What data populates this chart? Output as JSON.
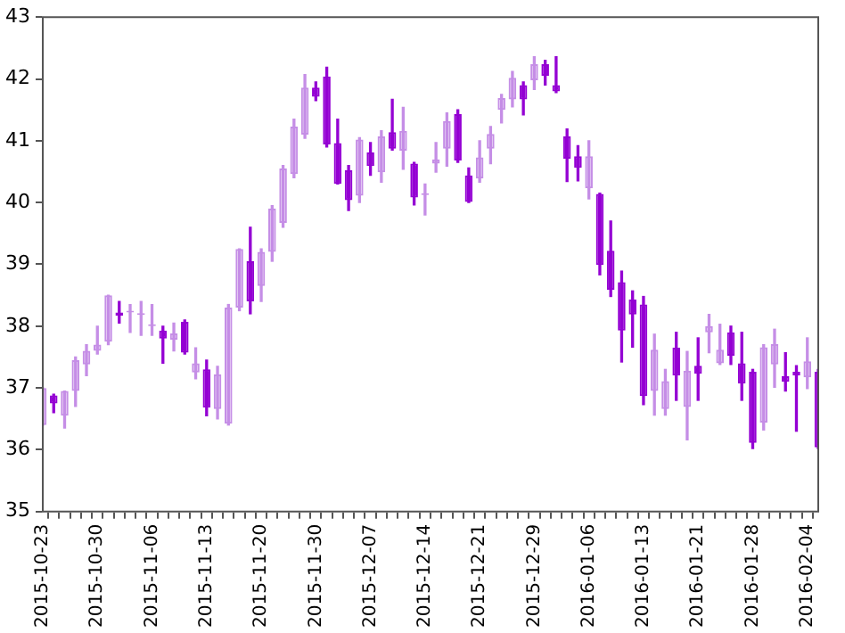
{
  "chart_data": {
    "type": "candlestick",
    "categories": [
      "2015-10-23",
      null,
      null,
      null,
      null,
      "2015-10-30",
      null,
      null,
      null,
      null,
      "2015-11-06",
      null,
      null,
      null,
      null,
      "2015-11-13",
      null,
      null,
      null,
      null,
      "2015-11-20",
      null,
      null,
      null,
      null,
      "2015-11-30",
      null,
      null,
      null,
      null,
      "2015-12-07",
      null,
      null,
      null,
      null,
      "2015-12-14",
      null,
      null,
      null,
      null,
      "2015-12-21",
      null,
      null,
      null,
      null,
      "2015-12-29",
      null,
      null,
      null,
      null,
      "2016-01-06",
      null,
      null,
      null,
      null,
      "2016-01-13",
      null,
      null,
      null,
      null,
      "2016-01-21",
      null,
      null,
      null,
      null,
      "2016-01-28",
      null,
      null,
      null,
      null,
      "2016-02-04",
      null
    ],
    "ohlc": [
      [
        36.4,
        37.0,
        36.4,
        37.0
      ],
      [
        36.88,
        36.9,
        36.6,
        36.75
      ],
      [
        36.55,
        36.95,
        36.35,
        36.95
      ],
      [
        36.95,
        37.5,
        36.7,
        37.45
      ],
      [
        37.38,
        37.7,
        37.2,
        37.6
      ],
      [
        37.6,
        38.0,
        37.55,
        37.7
      ],
      [
        37.75,
        38.5,
        37.7,
        38.5
      ],
      [
        38.22,
        38.4,
        38.05,
        38.17
      ],
      [
        38.22,
        38.35,
        37.9,
        38.25
      ],
      [
        38.18,
        38.4,
        37.85,
        38.2
      ],
      [
        38.0,
        38.35,
        37.85,
        38.03
      ],
      [
        37.93,
        38.0,
        37.4,
        37.8
      ],
      [
        37.78,
        38.05,
        37.6,
        37.88
      ],
      [
        38.07,
        38.1,
        37.55,
        37.57
      ],
      [
        37.25,
        37.65,
        37.15,
        37.4
      ],
      [
        37.3,
        37.45,
        36.55,
        36.68
      ],
      [
        36.66,
        37.35,
        36.5,
        37.22
      ],
      [
        36.42,
        38.35,
        36.4,
        38.3
      ],
      [
        38.3,
        39.25,
        38.25,
        39.25
      ],
      [
        39.05,
        39.6,
        38.2,
        38.4
      ],
      [
        38.65,
        39.25,
        38.4,
        39.2
      ],
      [
        39.2,
        39.95,
        39.05,
        39.9
      ],
      [
        39.67,
        40.6,
        39.6,
        40.55
      ],
      [
        40.46,
        41.35,
        40.4,
        41.23
      ],
      [
        41.1,
        42.07,
        41.04,
        41.86
      ],
      [
        41.86,
        41.95,
        41.65,
        41.71
      ],
      [
        42.04,
        42.19,
        40.9,
        40.94
      ],
      [
        40.96,
        41.35,
        40.3,
        40.3
      ],
      [
        40.52,
        40.6,
        39.87,
        40.04
      ],
      [
        40.11,
        41.05,
        40.0,
        41.02
      ],
      [
        40.81,
        40.97,
        40.44,
        40.59
      ],
      [
        40.49,
        41.16,
        40.33,
        41.07
      ],
      [
        41.14,
        41.67,
        40.85,
        40.87
      ],
      [
        40.84,
        41.54,
        40.54,
        41.16
      ],
      [
        40.63,
        40.65,
        39.96,
        40.08
      ],
      [
        40.12,
        40.3,
        39.8,
        40.15
      ],
      [
        40.63,
        40.97,
        40.49,
        40.7
      ],
      [
        40.87,
        41.45,
        40.59,
        41.32
      ],
      [
        41.43,
        41.5,
        40.65,
        40.68
      ],
      [
        40.44,
        40.56,
        40.0,
        40.01
      ],
      [
        40.39,
        41.0,
        40.33,
        40.73
      ],
      [
        40.87,
        41.23,
        40.63,
        41.11
      ],
      [
        41.5,
        41.75,
        41.29,
        41.69
      ],
      [
        41.67,
        42.12,
        41.55,
        42.02
      ],
      [
        41.9,
        41.95,
        41.42,
        41.67
      ],
      [
        41.98,
        42.36,
        41.83,
        42.24
      ],
      [
        42.24,
        42.3,
        41.9,
        42.05
      ],
      [
        41.9,
        42.36,
        41.78,
        41.8
      ],
      [
        41.07,
        41.19,
        40.34,
        40.71
      ],
      [
        40.75,
        40.92,
        40.35,
        40.56
      ],
      [
        40.23,
        41.0,
        40.06,
        40.75
      ],
      [
        40.14,
        40.15,
        38.83,
        38.99
      ],
      [
        39.22,
        39.7,
        38.48,
        38.59
      ],
      [
        38.71,
        38.89,
        37.42,
        37.93
      ],
      [
        38.43,
        38.57,
        37.66,
        38.19
      ],
      [
        38.35,
        38.48,
        36.73,
        36.87
      ],
      [
        36.95,
        37.87,
        36.56,
        37.62
      ],
      [
        36.66,
        37.3,
        36.56,
        37.11
      ],
      [
        37.65,
        37.9,
        36.8,
        37.2
      ],
      [
        36.69,
        37.59,
        36.16,
        37.28
      ],
      [
        37.36,
        37.81,
        36.8,
        37.23
      ],
      [
        37.9,
        38.19,
        37.57,
        38.0
      ],
      [
        37.4,
        38.03,
        37.38,
        37.62
      ],
      [
        37.9,
        38.0,
        37.38,
        37.52
      ],
      [
        37.4,
        37.9,
        36.8,
        37.07
      ],
      [
        37.26,
        37.3,
        36.02,
        36.11
      ],
      [
        36.44,
        37.7,
        36.32,
        37.66
      ],
      [
        37.38,
        37.95,
        37.01,
        37.71
      ],
      [
        37.19,
        37.57,
        36.95,
        37.1
      ],
      [
        37.26,
        37.36,
        36.3,
        37.2
      ],
      [
        37.17,
        37.81,
        36.99,
        37.43
      ],
      [
        37.26,
        37.3,
        36.02,
        36.04
      ]
    ],
    "colors": [
      "#c58ee6",
      "#9400d3",
      "#c58ee6",
      "#c58ee6",
      "#c58ee6",
      "#c58ee6",
      "#c58ee6",
      "#9400d3",
      "#c58ee6",
      "#c58ee6",
      "#c58ee6",
      "#9400d3",
      "#c58ee6",
      "#9400d3",
      "#c58ee6",
      "#9400d3",
      "#c58ee6",
      "#c58ee6",
      "#c58ee6",
      "#9400d3",
      "#c58ee6",
      "#c58ee6",
      "#c58ee6",
      "#c58ee6",
      "#c58ee6",
      "#9400d3",
      "#9400d3",
      "#9400d3",
      "#9400d3",
      "#c58ee6",
      "#9400d3",
      "#c58ee6",
      "#9400d3",
      "#c58ee6",
      "#9400d3",
      "#c58ee6",
      "#c58ee6",
      "#c58ee6",
      "#9400d3",
      "#9400d3",
      "#c58ee6",
      "#c58ee6",
      "#c58ee6",
      "#c58ee6",
      "#9400d3",
      "#c58ee6",
      "#9400d3",
      "#9400d3",
      "#9400d3",
      "#9400d3",
      "#c58ee6",
      "#9400d3",
      "#9400d3",
      "#9400d3",
      "#9400d3",
      "#9400d3",
      "#c58ee6",
      "#c58ee6",
      "#9400d3",
      "#c58ee6",
      "#9400d3",
      "#c58ee6",
      "#c58ee6",
      "#9400d3",
      "#9400d3",
      "#9400d3",
      "#c58ee6",
      "#c58ee6",
      "#9400d3",
      "#9400d3",
      "#c58ee6",
      "#9400d3"
    ],
    "ylim": [
      35,
      43
    ],
    "yticks": [
      35,
      36,
      37,
      38,
      39,
      40,
      41,
      42,
      43
    ],
    "grid": false
  }
}
